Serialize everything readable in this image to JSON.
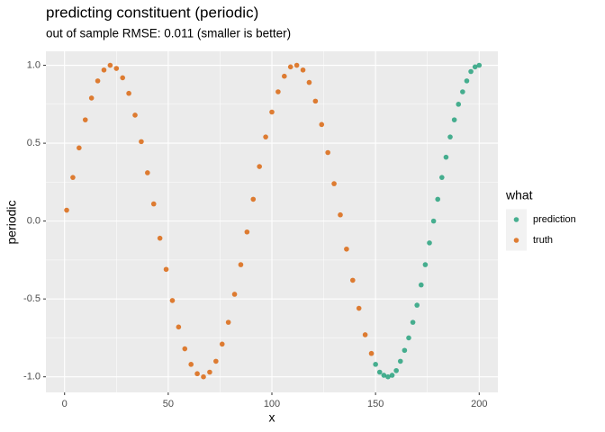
{
  "chart_data": {
    "type": "scatter",
    "title": "predicting constituent (periodic)",
    "subtitle": "out of sample RMSE: 0.011 (smaller is better)",
    "x_label": "x",
    "y_label": "periodic",
    "legend_title": "what",
    "legend_position": "right",
    "grid": true,
    "xlim": [
      -9,
      209
    ],
    "xticks": [
      0,
      50,
      100,
      150,
      200
    ],
    "ylim": [
      -1.1,
      1.09
    ],
    "yticks": [
      {
        "value": -1,
        "label": "-1.0"
      },
      {
        "value": -0.5,
        "label": "-0.5"
      },
      {
        "value": 0,
        "label": "0.0"
      },
      {
        "value": 0.5,
        "label": "0.5"
      },
      {
        "value": 1,
        "label": "1.0"
      }
    ],
    "series": [
      {
        "name": "prediction",
        "color": "#1b9e77",
        "x": [
          150,
          152,
          154,
          156,
          158,
          160,
          162,
          164,
          166,
          168,
          170,
          172,
          174,
          176,
          178,
          180,
          182,
          184,
          186,
          188,
          190,
          192,
          194,
          196,
          198,
          200
        ],
        "values": [
          -0.92,
          -0.97,
          -0.99,
          -1.0,
          -0.99,
          -0.96,
          -0.9,
          -0.83,
          -0.75,
          -0.65,
          -0.54,
          -0.41,
          -0.28,
          -0.14,
          0.0,
          0.14,
          0.28,
          0.41,
          0.54,
          0.65,
          0.75,
          0.83,
          0.9,
          0.96,
          0.99,
          1.0
        ]
      },
      {
        "name": "truth",
        "color": "#d95f02",
        "x": [
          1,
          4,
          7,
          10,
          13,
          16,
          19,
          22,
          25,
          28,
          31,
          34,
          37,
          40,
          43,
          46,
          49,
          52,
          55,
          58,
          61,
          64,
          67,
          70,
          73,
          76,
          79,
          82,
          85,
          88,
          91,
          94,
          97,
          100,
          103,
          106,
          109,
          112,
          115,
          118,
          121,
          124,
          127,
          130,
          133,
          136,
          139,
          142,
          145,
          148
        ],
        "values": [
          0.07,
          0.28,
          0.47,
          0.65,
          0.79,
          0.9,
          0.97,
          1.0,
          0.98,
          0.92,
          0.82,
          0.68,
          0.51,
          0.31,
          0.11,
          -0.11,
          -0.31,
          -0.51,
          -0.68,
          -0.82,
          -0.92,
          -0.98,
          -1.0,
          -0.97,
          -0.9,
          -0.79,
          -0.65,
          -0.47,
          -0.28,
          -0.07,
          0.14,
          0.35,
          0.54,
          0.7,
          0.83,
          0.93,
          0.99,
          1.0,
          0.97,
          0.89,
          0.77,
          0.62,
          0.44,
          0.24,
          0.04,
          -0.18,
          -0.38,
          -0.56,
          -0.73,
          -0.85
        ]
      }
    ]
  }
}
